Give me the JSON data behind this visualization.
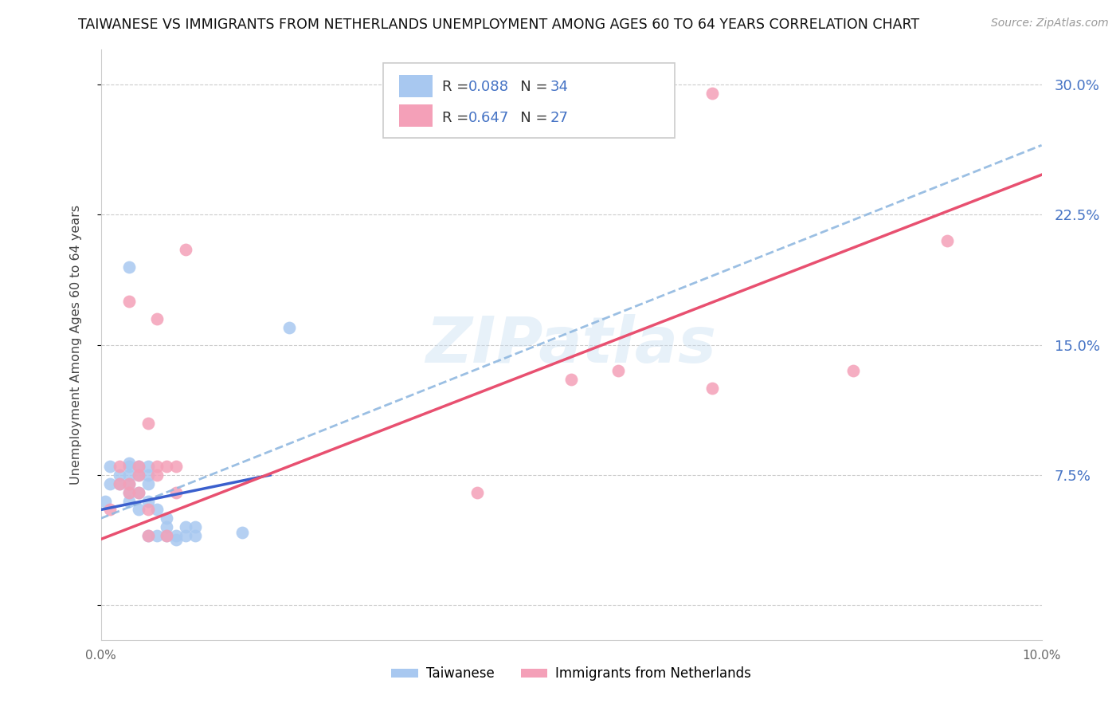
{
  "title": "TAIWANESE VS IMMIGRANTS FROM NETHERLANDS UNEMPLOYMENT AMONG AGES 60 TO 64 YEARS CORRELATION CHART",
  "source": "Source: ZipAtlas.com",
  "ylabel": "Unemployment Among Ages 60 to 64 years",
  "xlim": [
    0.0,
    0.1
  ],
  "ylim": [
    -0.02,
    0.32
  ],
  "yticks": [
    0.0,
    0.075,
    0.15,
    0.225,
    0.3
  ],
  "ytick_labels": [
    "",
    "7.5%",
    "15.0%",
    "22.5%",
    "30.0%"
  ],
  "xticks": [
    0.0,
    0.02,
    0.04,
    0.06,
    0.08,
    0.1
  ],
  "xtick_labels": [
    "0.0%",
    "",
    "",
    "",
    "",
    "10.0%"
  ],
  "taiwanese_R": 0.088,
  "taiwanese_N": 34,
  "netherlands_R": 0.647,
  "netherlands_N": 27,
  "taiwanese_color": "#a8c8f0",
  "netherlands_color": "#f4a0b8",
  "taiwanese_line_color": "#3a5fcd",
  "netherlands_line_color": "#e85070",
  "dash_line_color": "#90b8e0",
  "watermark": "ZIPatlas",
  "taiwanese_x": [
    0.0005,
    0.001,
    0.001,
    0.002,
    0.002,
    0.003,
    0.003,
    0.003,
    0.003,
    0.003,
    0.003,
    0.004,
    0.004,
    0.004,
    0.004,
    0.005,
    0.005,
    0.005,
    0.005,
    0.005,
    0.006,
    0.006,
    0.007,
    0.007,
    0.007,
    0.008,
    0.008,
    0.009,
    0.009,
    0.01,
    0.01,
    0.015,
    0.02,
    0.003
  ],
  "taiwanese_y": [
    0.06,
    0.07,
    0.08,
    0.07,
    0.075,
    0.06,
    0.065,
    0.07,
    0.075,
    0.08,
    0.082,
    0.055,
    0.065,
    0.075,
    0.08,
    0.06,
    0.07,
    0.075,
    0.08,
    0.04,
    0.04,
    0.055,
    0.045,
    0.05,
    0.04,
    0.04,
    0.038,
    0.045,
    0.04,
    0.045,
    0.04,
    0.042,
    0.16,
    0.195
  ],
  "netherlands_x": [
    0.001,
    0.002,
    0.002,
    0.003,
    0.003,
    0.003,
    0.004,
    0.004,
    0.004,
    0.005,
    0.005,
    0.005,
    0.006,
    0.006,
    0.006,
    0.007,
    0.007,
    0.008,
    0.008,
    0.009,
    0.04,
    0.05,
    0.055,
    0.065,
    0.065,
    0.08,
    0.09
  ],
  "netherlands_y": [
    0.055,
    0.07,
    0.08,
    0.065,
    0.07,
    0.175,
    0.075,
    0.065,
    0.08,
    0.04,
    0.055,
    0.105,
    0.08,
    0.075,
    0.165,
    0.08,
    0.04,
    0.065,
    0.08,
    0.205,
    0.065,
    0.13,
    0.135,
    0.125,
    0.295,
    0.135,
    0.21
  ],
  "tw_line_x0": 0.0,
  "tw_line_x1": 0.018,
  "tw_line_y0": 0.055,
  "tw_line_y1": 0.075,
  "nl_line_x0": 0.0,
  "nl_line_x1": 0.1,
  "nl_line_y0": 0.038,
  "nl_line_y1": 0.248,
  "dash_line_x0": 0.0,
  "dash_line_x1": 0.1,
  "dash_line_y0": 0.05,
  "dash_line_y1": 0.265
}
